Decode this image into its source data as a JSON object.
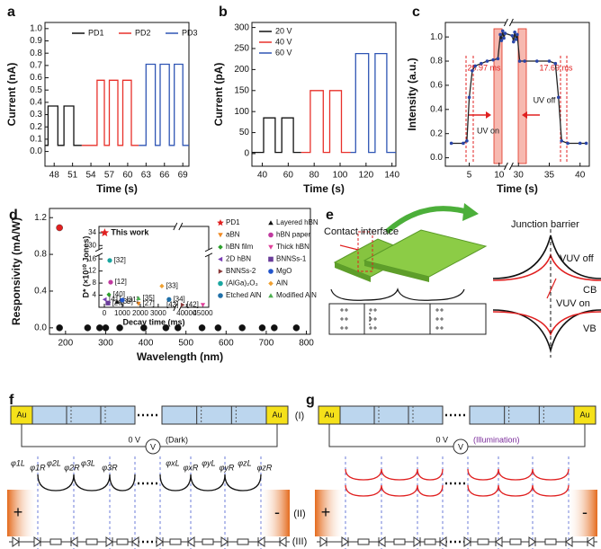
{
  "chart_data": [
    {
      "panel": "a",
      "type": "line",
      "xlabel": "Time (s)",
      "ylabel": "Current (nA)",
      "legend": "top",
      "xlim": [
        46.5,
        70
      ],
      "xticks": [
        48,
        51,
        54,
        57,
        60,
        63,
        66,
        69
      ],
      "ylim": [
        -0.12,
        1.05
      ],
      "yticks": [
        {
          "value": 0,
          "label": "0.0"
        },
        0.1,
        0.2,
        0.3,
        0.4,
        0.5,
        0.6,
        0.7,
        0.8,
        0.9,
        {
          "value": 1,
          "label": "1.0"
        }
      ],
      "series": [
        {
          "name": "PD1",
          "color": "#111111",
          "x": [
            46.5,
            47,
            47,
            48.6,
            48.6,
            49.6,
            49.6,
            51.2,
            51.2,
            52.5
          ],
          "values": [
            0.05,
            0.05,
            0.37,
            0.37,
            0.05,
            0.05,
            0.37,
            0.37,
            0.05,
            0.05
          ]
        },
        {
          "name": "PD2",
          "color": "#e8302a",
          "x": [
            52.5,
            55,
            55,
            56.2,
            56.2,
            57,
            57,
            58.4,
            58.4,
            59.2,
            59.2,
            60.6,
            60.6,
            61.8
          ],
          "values": [
            0.05,
            0.05,
            0.58,
            0.58,
            0.05,
            0.05,
            0.58,
            0.58,
            0.05,
            0.05,
            0.58,
            0.58,
            0.05,
            0.05
          ]
        },
        {
          "name": "PD3",
          "color": "#2f55b4",
          "x": [
            61.8,
            63,
            63,
            64.5,
            64.5,
            65.3,
            65.3,
            66.8,
            66.8,
            67.6,
            67.6,
            69,
            69,
            70
          ],
          "values": [
            0.05,
            0.05,
            0.71,
            0.71,
            0.05,
            0.05,
            0.71,
            0.71,
            0.05,
            0.05,
            0.71,
            0.71,
            0.05,
            0.05
          ]
        }
      ]
    },
    {
      "panel": "b",
      "type": "line",
      "xlabel": "Time (s)",
      "ylabel": "Current (pA)",
      "legend": "upper left",
      "xlim": [
        32,
        143
      ],
      "xticks": [
        40,
        60,
        80,
        100,
        120,
        140
      ],
      "ylim": [
        -30,
        312
      ],
      "yticks": [
        0,
        50,
        100,
        150,
        200,
        250,
        300
      ],
      "series": [
        {
          "name": "20 V",
          "color": "#111111",
          "x": [
            32,
            41,
            41,
            50,
            50,
            55,
            55,
            64,
            64,
            70
          ],
          "values": [
            3,
            3,
            85,
            85,
            3,
            3,
            85,
            85,
            3,
            3
          ]
        },
        {
          "name": "40 V",
          "color": "#e8302a",
          "x": [
            70,
            77,
            77,
            87,
            87,
            92,
            92,
            101,
            101,
            108
          ],
          "values": [
            3,
            3,
            150,
            150,
            3,
            3,
            150,
            150,
            3,
            3
          ]
        },
        {
          "name": "60 V",
          "color": "#2f55b4",
          "x": [
            108,
            112,
            112,
            122,
            122,
            127,
            127,
            136,
            136,
            143
          ],
          "values": [
            3,
            3,
            238,
            238,
            3,
            3,
            238,
            238,
            3,
            3
          ]
        }
      ]
    },
    {
      "panel": "c",
      "type": "line",
      "xlabel": "Time (s)",
      "ylabel": "Intensity (a.u.)",
      "xlim": [
        1,
        41.5
      ],
      "xbreak": [
        11,
        29
      ],
      "xticks": [
        5,
        10,
        30,
        35,
        40
      ],
      "ylim": [
        -0.07,
        1.12
      ],
      "yticks": [
        {
          "value": 0,
          "label": "0.0"
        },
        0.2,
        0.4,
        0.6,
        0.8,
        {
          "value": 1,
          "label": "1.0"
        }
      ],
      "marker": "circle",
      "marker_color": "#2a45a8",
      "annotations": [
        "20.97 ms",
        "UV on",
        "17.69 ms",
        "UV off"
      ],
      "series": [
        {
          "color": "#222222",
          "x": [
            2,
            4,
            4.6,
            5,
            5.5,
            6,
            7,
            8,
            9,
            9.8,
            10.2,
            10.4,
            10.6,
            10.8,
            11,
            29,
            29.2,
            29.4,
            29.6,
            29.8,
            30.2,
            31,
            33,
            35,
            36,
            36.5,
            37,
            38,
            40,
            41
          ],
          "values": [
            0.12,
            0.12,
            0.14,
            0.5,
            0.72,
            0.76,
            0.78,
            0.8,
            0.81,
            0.82,
            1.02,
            0.97,
            1.05,
            0.99,
            1.03,
            1.01,
            0.96,
            1.04,
            0.98,
            1.02,
            0.8,
            0.8,
            0.8,
            0.8,
            0.78,
            0.5,
            0.14,
            0.12,
            0.12,
            0.12
          ]
        }
      ]
    },
    {
      "panel": "d",
      "type": "scatter",
      "xlabel": "Wavelength (nm)",
      "ylabel": "Responsivity (mA/W)",
      "xlim": [
        160,
        810
      ],
      "xticks": [
        200,
        300,
        400,
        500,
        600,
        700,
        800
      ],
      "ylim": [
        -0.07,
        1.3
      ],
      "yticks": [
        {
          "value": 0,
          "label": "0.0"
        },
        0.4,
        0.8,
        1.2
      ],
      "series": [
        {
          "color": "#e02020",
          "marker": "circle",
          "x": [
            185
          ],
          "values": [
            1.09
          ]
        },
        {
          "color": "#111111",
          "marker": "circle",
          "x": [
            185,
            255,
            285,
            300,
            335,
            395,
            450,
            480,
            540,
            580,
            640,
            690,
            720,
            775
          ],
          "values": [
            0,
            0,
            0,
            0,
            0,
            0,
            0,
            0,
            0,
            0,
            0,
            0,
            0,
            0
          ]
        }
      ]
    },
    {
      "type": "scatter",
      "xlabel": "Decay time (ms)",
      "ylabel": "D* (×10¹⁰ Jones)",
      "legend": "right",
      "xlim": [
        -300,
        46800
      ],
      "xbreak": [
        3900,
        38500
      ],
      "xticks": [
        0,
        1000,
        2000,
        3000,
        40000,
        45000
      ],
      "ylim": [
        0,
        36
      ],
      "ybreak": [
        17,
        29
      ],
      "yticks": [
        4,
        8,
        12,
        16,
        30,
        34
      ],
      "series": [
        {
          "name": "PD1",
          "color": "#e02020",
          "marker": "star",
          "x": [
            20
          ],
          "values": [
            34
          ],
          "labels": [
            "This work"
          ]
        },
        {
          "name": "aBN",
          "color": "#f08a24",
          "marker": "triangle-down",
          "x": [
            1900
          ],
          "values": [
            1.2
          ],
          "labels": [
            "[27]"
          ]
        },
        {
          "name": "hBN film",
          "color": "#2ca02c",
          "marker": "diamond",
          "x": [
            250
          ],
          "values": [
            4.2
          ],
          "labels": [
            "[40]"
          ]
        },
        {
          "name": "2D hBN",
          "color": "#7b3fb5",
          "marker": "triangle-left",
          "x": [
            20
          ],
          "values": [
            2.6
          ],
          "labels": [
            "[41]"
          ]
        },
        {
          "name": "BNNSs-2",
          "color": "#8b3a3a",
          "marker": "triangle-right",
          "x": [
            38800
          ],
          "values": [
            0.8
          ],
          "labels": [
            "[43]"
          ]
        },
        {
          "name": "(AlGa)₂O₃",
          "color": "#1aa6a0",
          "marker": "circle",
          "x": [
            300
          ],
          "values": [
            15.5
          ],
          "labels": [
            "[32]"
          ]
        },
        {
          "name": "Etched AlN",
          "color": "#1f6fa8",
          "marker": "circle",
          "x": [
            3600
          ],
          "values": [
            2.6
          ],
          "labels": [
            "[34]"
          ]
        },
        {
          "name": "Layered hBN",
          "color": "#111111",
          "marker": "triangle",
          "x": [
            700
          ],
          "values": [
            1.8
          ],
          "labels": [
            "[39]"
          ]
        },
        {
          "name": "hBN paper",
          "color": "#c0399f",
          "marker": "circle",
          "x": [
            350
          ],
          "values": [
            8.3
          ],
          "labels": [
            "[12]"
          ]
        },
        {
          "name": "Thick hBN",
          "color": "#e0409a",
          "marker": "triangle-down",
          "x": [
            45000
          ],
          "values": [
            0.8
          ],
          "labels": [
            "[42]"
          ]
        },
        {
          "name": "BNNSs-1",
          "color": "#6a3d9a",
          "marker": "square",
          "x": [
            200
          ],
          "values": [
            1.4
          ],
          "labels": [
            "[29]"
          ]
        },
        {
          "name": "MgO",
          "color": "#2255cc",
          "marker": "circle",
          "x": [
            1000
          ],
          "values": [
            2.4
          ],
          "labels": [
            "[31]"
          ]
        },
        {
          "name": "AlN",
          "color": "#f0a030",
          "marker": "diamond",
          "x": [
            3200
          ],
          "values": [
            7.0
          ],
          "labels": [
            "[33]"
          ]
        },
        {
          "name": "Modified AlN",
          "color": "#4caf50",
          "marker": "triangle",
          "x": [
            1900
          ],
          "values": [
            3.0
          ],
          "labels": [
            "[35]"
          ]
        }
      ]
    }
  ],
  "diagram_e": {
    "label": "e",
    "contact": "Contact interface",
    "junction": "Junction barrier",
    "vuv_off": "VUV off",
    "vuv_on": "VUV on",
    "cb": "CB",
    "vb": "VB"
  },
  "diagram_f": {
    "label": "f",
    "electrodes": [
      "Au",
      "Au"
    ],
    "bias": "0 V",
    "meter": "V",
    "condition": "(Dark)",
    "poles": [
      "+",
      "-"
    ],
    "barriers": [
      "φ1L",
      "φ1R",
      "φ2L",
      "φ2R",
      "φ3L",
      "φ3R",
      "φxL",
      "φxR",
      "φyL",
      "φyR",
      "φzL",
      "φzR"
    ]
  },
  "diagram_g": {
    "label": "g",
    "electrodes": [
      "Au",
      "Au"
    ],
    "bias": "0 V",
    "meter": "V",
    "condition": "(Illumination)",
    "poles": [
      "+",
      "-"
    ]
  },
  "rows": [
    "(I)",
    "(II)",
    "(III)"
  ]
}
